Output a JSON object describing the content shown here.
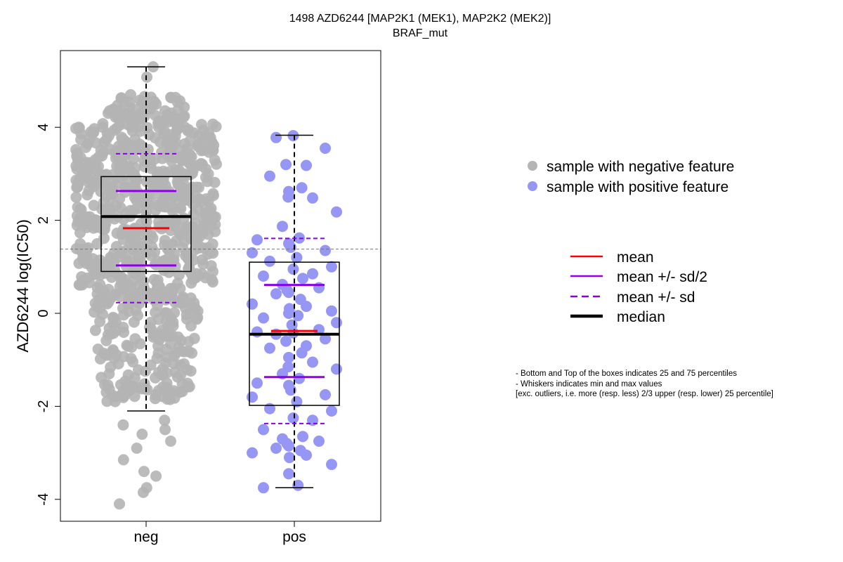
{
  "chart_data": {
    "type": "box-swarm",
    "title": "1498 AZD6244 [MAP2K1 (MEK1), MAP2K2 (MEK2)]",
    "subtitle": "BRAF_mut",
    "xlabel": "",
    "ylabel": "AZD6244 log(IC50)",
    "categories": [
      "neg",
      "pos"
    ],
    "ylim": [
      -4.5,
      5.6
    ],
    "yticks": [
      -4,
      -2,
      0,
      2,
      4
    ],
    "reference_line": 1.38,
    "series": [
      {
        "name": "sample with negative feature",
        "category": "neg",
        "color": "#b4b4b4",
        "box": {
          "min": -2.1,
          "q1": 0.9,
          "median": 2.08,
          "q3": 2.94,
          "max": 5.3
        },
        "mean": 1.83,
        "mean_minus_half_sd": 1.03,
        "mean_plus_half_sd": 2.63,
        "mean_minus_sd": 0.23,
        "mean_plus_sd": 3.43,
        "n_points": 900,
        "outliers": [
          -2.3,
          -2.4,
          -2.5,
          -2.6,
          -2.75,
          -2.9,
          -3.15,
          -3.4,
          -3.5,
          -3.75,
          -3.85,
          -4.1
        ]
      },
      {
        "name": "sample with positive feature",
        "category": "pos",
        "color": "#9696f5",
        "box": {
          "min": -3.75,
          "q1": -1.98,
          "median": -0.45,
          "q3": 1.1,
          "max": 3.83
        },
        "mean": -0.38,
        "mean_minus_half_sd": -1.37,
        "mean_plus_half_sd": 0.61,
        "mean_minus_sd": -2.37,
        "mean_plus_sd": 1.61,
        "points": [
          3.82,
          3.78,
          3.55,
          3.2,
          3.18,
          2.95,
          2.7,
          2.62,
          2.48,
          2.5,
          2.18,
          1.87,
          1.62,
          1.58,
          1.5,
          1.42,
          1.35,
          1.3,
          1.2,
          1.12,
          1.0,
          0.95,
          0.85,
          0.8,
          0.75,
          0.62,
          0.55,
          0.5,
          0.45,
          0.42,
          0.3,
          0.2,
          0.15,
          0.1,
          0.05,
          0.0,
          -0.05,
          -0.1,
          -0.2,
          -0.25,
          -0.35,
          -0.4,
          -0.42,
          -0.45,
          -0.55,
          -0.6,
          -0.7,
          -0.75,
          -0.85,
          -0.95,
          -1.05,
          -1.15,
          -1.2,
          -1.3,
          -1.4,
          -1.5,
          -1.55,
          -1.65,
          -1.75,
          -1.8,
          -1.9,
          -2.05,
          -2.1,
          -2.25,
          -2.3,
          -2.5,
          -2.65,
          -2.7,
          -2.75,
          -2.8,
          -2.85,
          -2.9,
          -2.95,
          -3.0,
          -3.05,
          -3.1,
          -3.25,
          -3.45,
          -3.7,
          -3.75
        ]
      }
    ],
    "legend": {
      "placement": "right",
      "points": [
        "sample with negative feature",
        "sample with positive feature"
      ],
      "lines": [
        {
          "label": "mean",
          "color": "#ff0000",
          "style": "solid"
        },
        {
          "label": "mean +/- sd/2",
          "color": "#8b00e8",
          "style": "solid"
        },
        {
          "label": "mean +/- sd",
          "color": "#8b00e8",
          "style": "dashed"
        },
        {
          "label": "median",
          "color": "#000000",
          "style": "thick"
        }
      ]
    },
    "notes": [
      "- Bottom and Top of the boxes indicates 25 and 75 percentiles",
      "- Whiskers indicates min and max values",
      "[exc. outliers, i.e. more (resp. less) 2/3 upper (resp. lower) 25 percentile]"
    ]
  }
}
